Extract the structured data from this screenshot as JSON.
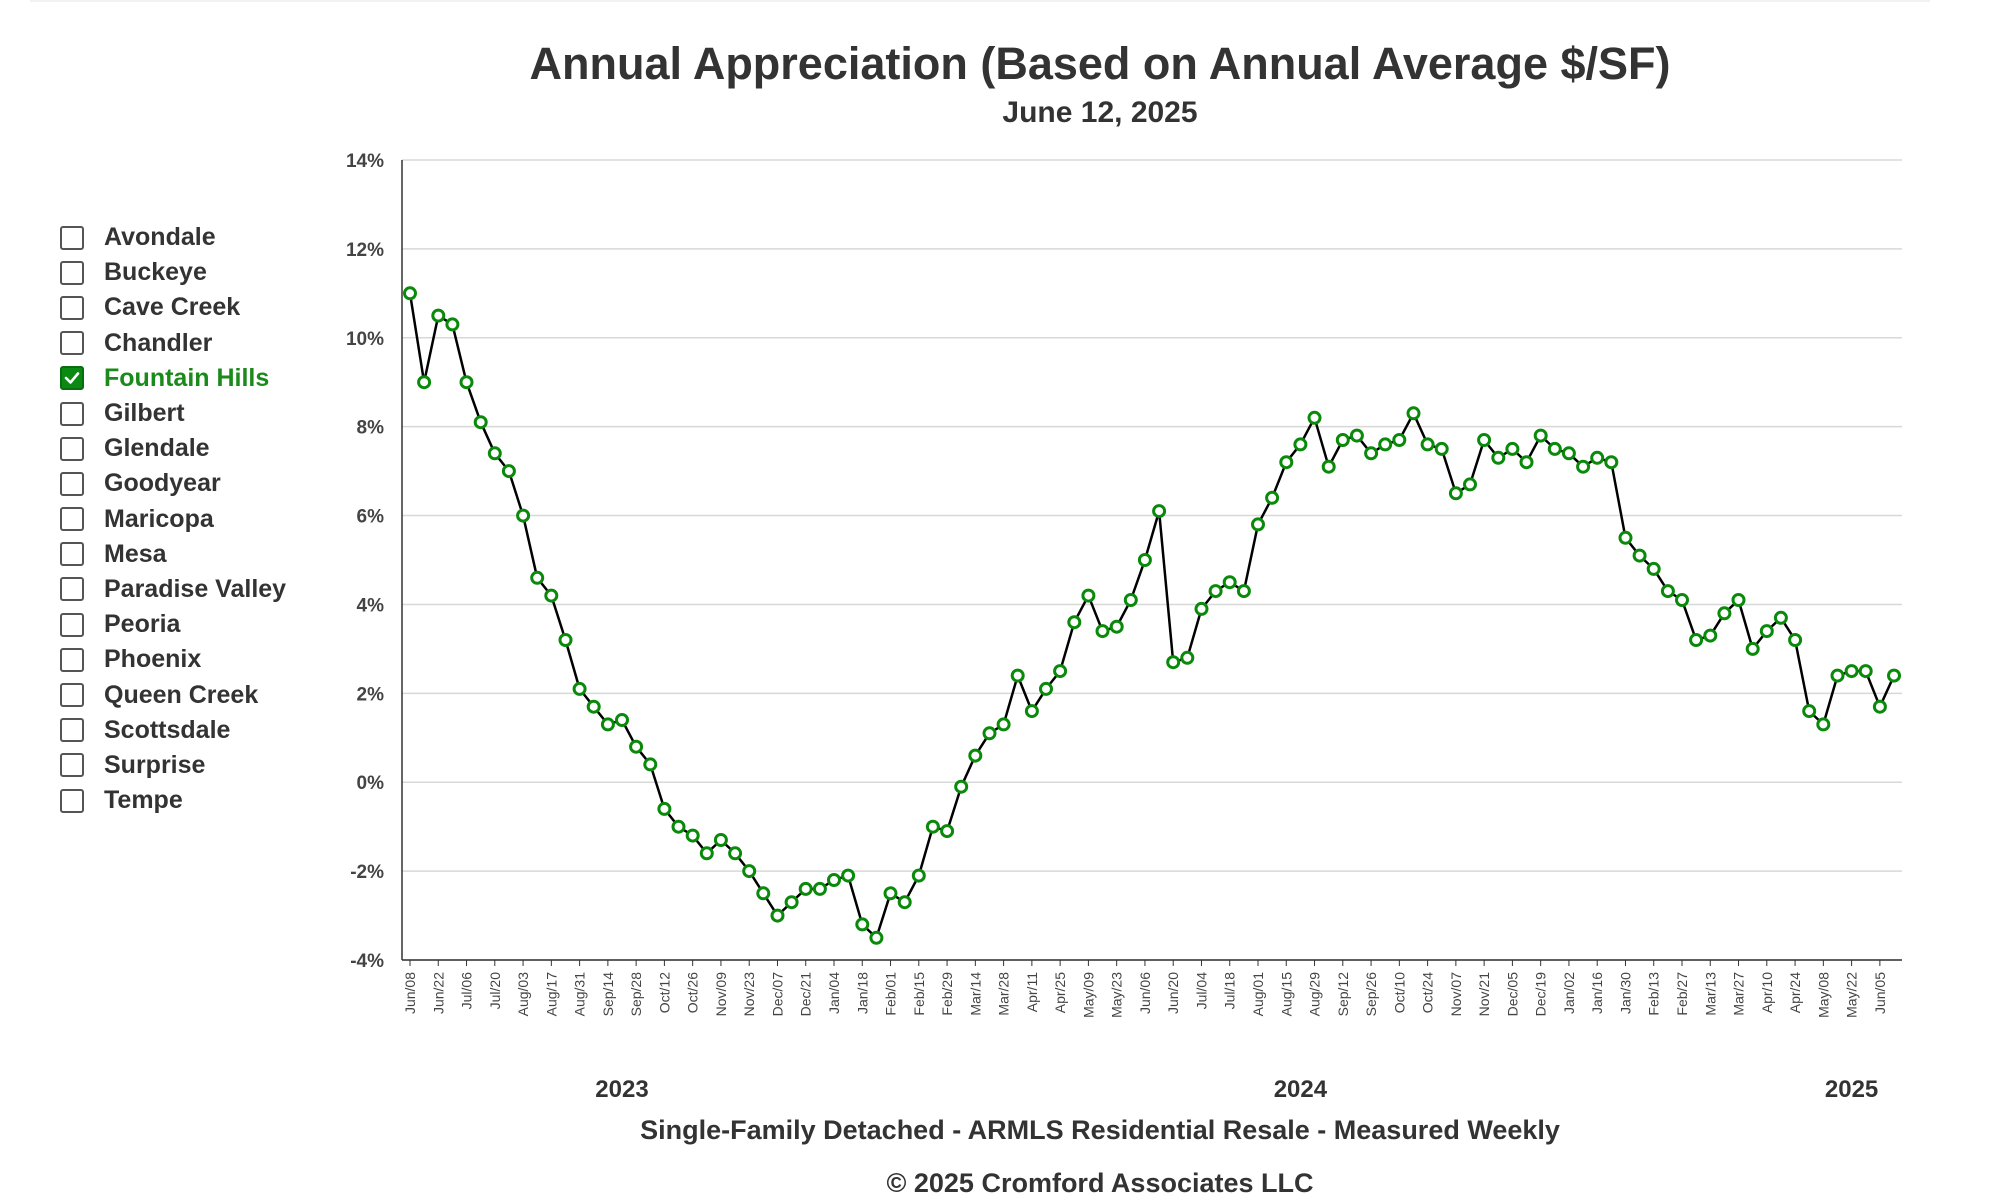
{
  "title": "Annual Appreciation (Based on Annual Average $/SF)",
  "subtitle": "June 12, 2025",
  "caption": "Single-Family Detached - ARMLS Residential Resale - Measured Weekly",
  "copyright": "© 2025 Cromford Associates LLC",
  "colors": {
    "series_line": "#000000",
    "marker_stroke": "#0a8a0a",
    "checked_label": "#1a8a1a",
    "grid": "#d8d8d8"
  },
  "legend": {
    "items": [
      {
        "label": "Avondale",
        "checked": false
      },
      {
        "label": "Buckeye",
        "checked": false
      },
      {
        "label": "Cave Creek",
        "checked": false
      },
      {
        "label": "Chandler",
        "checked": false
      },
      {
        "label": "Fountain Hills",
        "checked": true
      },
      {
        "label": "Gilbert",
        "checked": false
      },
      {
        "label": "Glendale",
        "checked": false
      },
      {
        "label": "Goodyear",
        "checked": false
      },
      {
        "label": "Maricopa",
        "checked": false
      },
      {
        "label": "Mesa",
        "checked": false
      },
      {
        "label": "Paradise Valley",
        "checked": false
      },
      {
        "label": "Peoria",
        "checked": false
      },
      {
        "label": "Phoenix",
        "checked": false
      },
      {
        "label": "Queen Creek",
        "checked": false
      },
      {
        "label": "Scottsdale",
        "checked": false
      },
      {
        "label": "Surprise",
        "checked": false
      },
      {
        "label": "Tempe",
        "checked": false
      }
    ]
  },
  "chart_data": {
    "type": "line",
    "title": "Annual Appreciation (Based on Annual Average $/SF)",
    "subtitle": "June 12, 2025",
    "xlabel": "",
    "ylabel": "",
    "ylim": [
      -4,
      14
    ],
    "yticks": [
      -4,
      -2,
      0,
      2,
      4,
      6,
      8,
      10,
      12,
      14
    ],
    "ytick_labels": [
      "-4%",
      "-2%",
      "0%",
      "2%",
      "4%",
      "6%",
      "8%",
      "10%",
      "12%",
      "14%"
    ],
    "grid": true,
    "x_start": "2023-06-08",
    "x_end": "2025-06-12",
    "x_ticks": [
      {
        "date": "2023-06-08",
        "label": "Jun/08"
      },
      {
        "date": "2023-06-22",
        "label": "Jun/22"
      },
      {
        "date": "2023-07-06",
        "label": "Jul/06"
      },
      {
        "date": "2023-07-20",
        "label": "Jul/20"
      },
      {
        "date": "2023-08-03",
        "label": "Aug/03"
      },
      {
        "date": "2023-08-17",
        "label": "Aug/17"
      },
      {
        "date": "2023-08-31",
        "label": "Aug/31"
      },
      {
        "date": "2023-09-14",
        "label": "Sep/14"
      },
      {
        "date": "2023-09-28",
        "label": "Sep/28"
      },
      {
        "date": "2023-10-12",
        "label": "Oct/12"
      },
      {
        "date": "2023-10-26",
        "label": "Oct/26"
      },
      {
        "date": "2023-11-09",
        "label": "Nov/09"
      },
      {
        "date": "2023-11-23",
        "label": "Nov/23"
      },
      {
        "date": "2023-12-07",
        "label": "Dec/07"
      },
      {
        "date": "2023-12-21",
        "label": "Dec/21"
      },
      {
        "date": "2024-01-04",
        "label": "Jan/04"
      },
      {
        "date": "2024-01-18",
        "label": "Jan/18"
      },
      {
        "date": "2024-02-01",
        "label": "Feb/01"
      },
      {
        "date": "2024-02-15",
        "label": "Feb/15"
      },
      {
        "date": "2024-02-29",
        "label": "Feb/29"
      },
      {
        "date": "2024-03-14",
        "label": "Mar/14"
      },
      {
        "date": "2024-03-28",
        "label": "Mar/28"
      },
      {
        "date": "2024-04-11",
        "label": "Apr/11"
      },
      {
        "date": "2024-04-25",
        "label": "Apr/25"
      },
      {
        "date": "2024-05-09",
        "label": "May/09"
      },
      {
        "date": "2024-05-23",
        "label": "May/23"
      },
      {
        "date": "2024-06-06",
        "label": "Jun/06"
      },
      {
        "date": "2024-06-20",
        "label": "Jun/20"
      },
      {
        "date": "2024-07-04",
        "label": "Jul/04"
      },
      {
        "date": "2024-07-18",
        "label": "Jul/18"
      },
      {
        "date": "2024-08-01",
        "label": "Aug/01"
      },
      {
        "date": "2024-08-15",
        "label": "Aug/15"
      },
      {
        "date": "2024-08-29",
        "label": "Aug/29"
      },
      {
        "date": "2024-09-12",
        "label": "Sep/12"
      },
      {
        "date": "2024-09-26",
        "label": "Sep/26"
      },
      {
        "date": "2024-10-10",
        "label": "Oct/10"
      },
      {
        "date": "2024-10-24",
        "label": "Oct/24"
      },
      {
        "date": "2024-11-07",
        "label": "Nov/07"
      },
      {
        "date": "2024-11-21",
        "label": "Nov/21"
      },
      {
        "date": "2024-12-05",
        "label": "Dec/05"
      },
      {
        "date": "2024-12-19",
        "label": "Dec/19"
      },
      {
        "date": "2025-01-02",
        "label": "Jan/02"
      },
      {
        "date": "2025-01-16",
        "label": "Jan/16"
      },
      {
        "date": "2025-01-30",
        "label": "Jan/30"
      },
      {
        "date": "2025-02-13",
        "label": "Feb/13"
      },
      {
        "date": "2025-02-27",
        "label": "Feb/27"
      },
      {
        "date": "2025-03-13",
        "label": "Mar/13"
      },
      {
        "date": "2025-03-27",
        "label": "Mar/27"
      },
      {
        "date": "2025-04-10",
        "label": "Apr/10"
      },
      {
        "date": "2025-04-24",
        "label": "Apr/24"
      },
      {
        "date": "2025-05-08",
        "label": "May/08"
      },
      {
        "date": "2025-05-22",
        "label": "May/22"
      },
      {
        "date": "2025-06-05",
        "label": "Jun/05"
      }
    ],
    "year_labels": [
      {
        "date": "2023-09-21",
        "label": "2023"
      },
      {
        "date": "2024-08-22",
        "label": "2024"
      },
      {
        "date": "2025-05-22",
        "label": "2025"
      }
    ],
    "series": [
      {
        "name": "Fountain Hills",
        "points": [
          [
            "2023-06-08",
            11.0
          ],
          [
            "2023-06-15",
            9.0
          ],
          [
            "2023-06-22",
            10.5
          ],
          [
            "2023-06-29",
            10.3
          ],
          [
            "2023-07-06",
            9.0
          ],
          [
            "2023-07-13",
            8.1
          ],
          [
            "2023-07-20",
            7.4
          ],
          [
            "2023-07-27",
            7.0
          ],
          [
            "2023-08-03",
            6.0
          ],
          [
            "2023-08-10",
            4.6
          ],
          [
            "2023-08-17",
            4.2
          ],
          [
            "2023-08-24",
            3.2
          ],
          [
            "2023-08-31",
            2.1
          ],
          [
            "2023-09-07",
            1.7
          ],
          [
            "2023-09-14",
            1.3
          ],
          [
            "2023-09-21",
            1.4
          ],
          [
            "2023-09-28",
            0.8
          ],
          [
            "2023-10-05",
            0.4
          ],
          [
            "2023-10-12",
            -0.6
          ],
          [
            "2023-10-19",
            -1.0
          ],
          [
            "2023-10-26",
            -1.2
          ],
          [
            "2023-11-02",
            -1.6
          ],
          [
            "2023-11-09",
            -1.3
          ],
          [
            "2023-11-16",
            -1.6
          ],
          [
            "2023-11-23",
            -2.0
          ],
          [
            "2023-11-30",
            -2.5
          ],
          [
            "2023-12-07",
            -3.0
          ],
          [
            "2023-12-14",
            -2.7
          ],
          [
            "2023-12-21",
            -2.4
          ],
          [
            "2023-12-28",
            -2.4
          ],
          [
            "2024-01-04",
            -2.2
          ],
          [
            "2024-01-11",
            -2.1
          ],
          [
            "2024-01-18",
            -3.2
          ],
          [
            "2024-01-25",
            -3.5
          ],
          [
            "2024-02-01",
            -2.5
          ],
          [
            "2024-02-08",
            -2.7
          ],
          [
            "2024-02-15",
            -2.1
          ],
          [
            "2024-02-22",
            -1.0
          ],
          [
            "2024-02-29",
            -1.1
          ],
          [
            "2024-03-07",
            -0.1
          ],
          [
            "2024-03-14",
            0.6
          ],
          [
            "2024-03-21",
            1.1
          ],
          [
            "2024-03-28",
            1.3
          ],
          [
            "2024-04-04",
            2.4
          ],
          [
            "2024-04-11",
            1.6
          ],
          [
            "2024-04-18",
            2.1
          ],
          [
            "2024-04-25",
            2.5
          ],
          [
            "2024-05-02",
            3.6
          ],
          [
            "2024-05-09",
            4.2
          ],
          [
            "2024-05-16",
            3.4
          ],
          [
            "2024-05-23",
            3.5
          ],
          [
            "2024-05-30",
            4.1
          ],
          [
            "2024-06-06",
            5.0
          ],
          [
            "2024-06-13",
            6.1
          ],
          [
            "2024-06-20",
            2.7
          ],
          [
            "2024-06-27",
            2.8
          ],
          [
            "2024-07-04",
            3.9
          ],
          [
            "2024-07-11",
            4.3
          ],
          [
            "2024-07-18",
            4.5
          ],
          [
            "2024-07-25",
            4.3
          ],
          [
            "2024-08-01",
            5.8
          ],
          [
            "2024-08-08",
            6.4
          ],
          [
            "2024-08-15",
            7.2
          ],
          [
            "2024-08-22",
            7.6
          ],
          [
            "2024-08-29",
            8.2
          ],
          [
            "2024-09-05",
            7.1
          ],
          [
            "2024-09-12",
            7.7
          ],
          [
            "2024-09-19",
            7.8
          ],
          [
            "2024-09-26",
            7.4
          ],
          [
            "2024-10-03",
            7.6
          ],
          [
            "2024-10-10",
            7.7
          ],
          [
            "2024-10-17",
            8.3
          ],
          [
            "2024-10-24",
            7.6
          ],
          [
            "2024-10-31",
            7.5
          ],
          [
            "2024-11-07",
            6.5
          ],
          [
            "2024-11-14",
            6.7
          ],
          [
            "2024-11-21",
            7.7
          ],
          [
            "2024-11-28",
            7.3
          ],
          [
            "2024-12-05",
            7.5
          ],
          [
            "2024-12-12",
            7.2
          ],
          [
            "2024-12-19",
            7.8
          ],
          [
            "2024-12-26",
            7.5
          ],
          [
            "2025-01-02",
            7.4
          ],
          [
            "2025-01-09",
            7.1
          ],
          [
            "2025-01-16",
            7.3
          ],
          [
            "2025-01-23",
            7.2
          ],
          [
            "2025-01-30",
            5.5
          ],
          [
            "2025-02-06",
            5.1
          ],
          [
            "2025-02-13",
            4.8
          ],
          [
            "2025-02-20",
            4.3
          ],
          [
            "2025-02-27",
            4.1
          ],
          [
            "2025-03-06",
            3.2
          ],
          [
            "2025-03-13",
            3.3
          ],
          [
            "2025-03-20",
            3.8
          ],
          [
            "2025-03-27",
            4.1
          ],
          [
            "2025-04-03",
            3.0
          ],
          [
            "2025-04-10",
            3.4
          ],
          [
            "2025-04-17",
            3.7
          ],
          [
            "2025-04-24",
            3.2
          ],
          [
            "2025-05-01",
            1.6
          ],
          [
            "2025-05-08",
            1.3
          ],
          [
            "2025-05-15",
            2.4
          ],
          [
            "2025-05-22",
            2.5
          ],
          [
            "2025-05-29",
            2.5
          ],
          [
            "2025-06-05",
            1.7
          ],
          [
            "2025-06-12",
            2.4
          ]
        ]
      }
    ]
  }
}
